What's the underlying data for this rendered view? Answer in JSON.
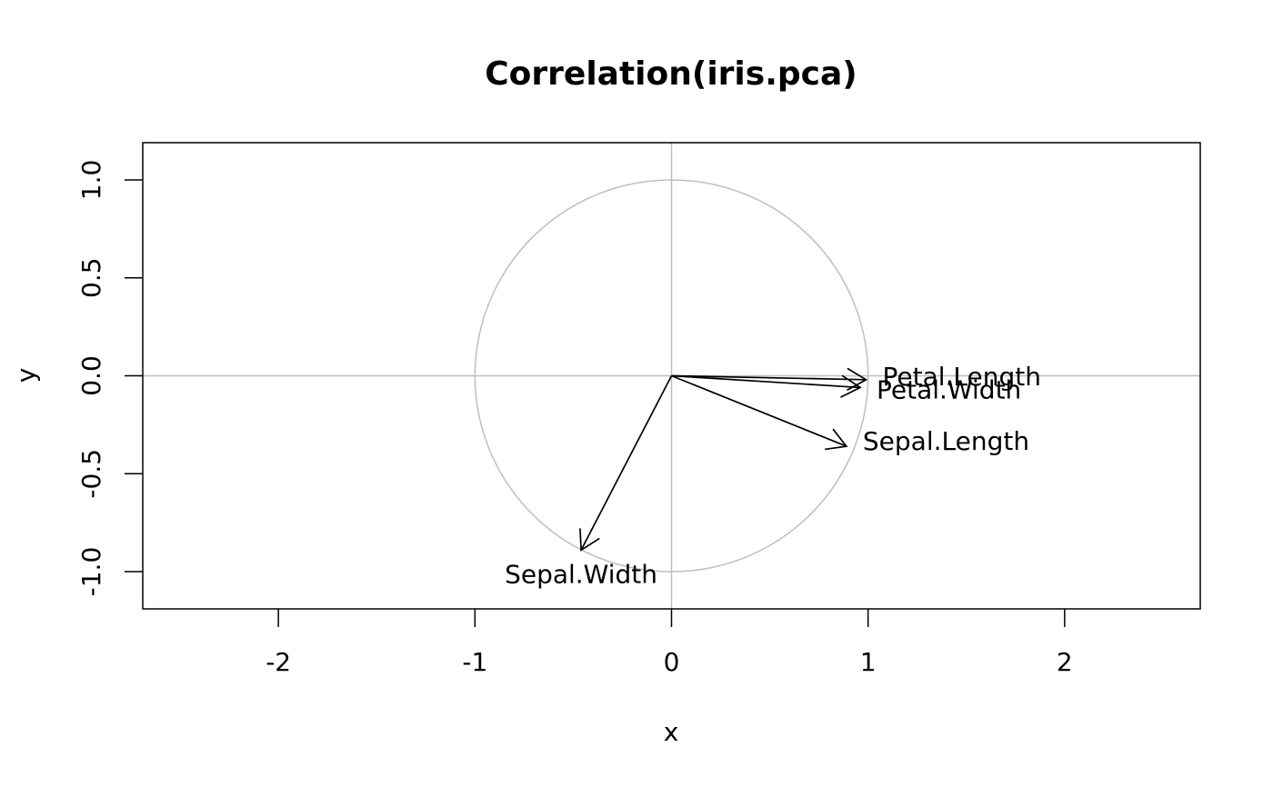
{
  "chart_data": {
    "type": "scatter",
    "title": "Correlation(iris.pca)",
    "xlabel": "x",
    "ylabel": "y",
    "xlim": [
      -2.69,
      2.69
    ],
    "ylim": [
      -1.19,
      1.19
    ],
    "x_ticks": [
      -2,
      -1,
      0,
      1,
      2
    ],
    "x_tick_labels": [
      "-2",
      "-1",
      "0",
      "1",
      "2"
    ],
    "y_ticks": [
      -1.0,
      -0.5,
      0.0,
      0.5,
      1.0
    ],
    "y_tick_labels": [
      "-1.0",
      "-0.5",
      "0.0",
      "0.5",
      "1.0"
    ],
    "grid": false,
    "unit_circle": true,
    "reference_lines": {
      "h": 0,
      "v": 0,
      "color": "#bebebe"
    },
    "vectors": [
      {
        "label": "Sepal.Length",
        "x": 0.89,
        "y": -0.36
      },
      {
        "label": "Sepal.Width",
        "x": -0.46,
        "y": -0.89
      },
      {
        "label": "Petal.Length",
        "x": 0.99,
        "y": -0.02
      },
      {
        "label": "Petal.Width",
        "x": 0.96,
        "y": -0.06
      }
    ],
    "colors": {
      "arrow": "#000000",
      "circle": "#bebebe",
      "axes": "#000000"
    }
  }
}
